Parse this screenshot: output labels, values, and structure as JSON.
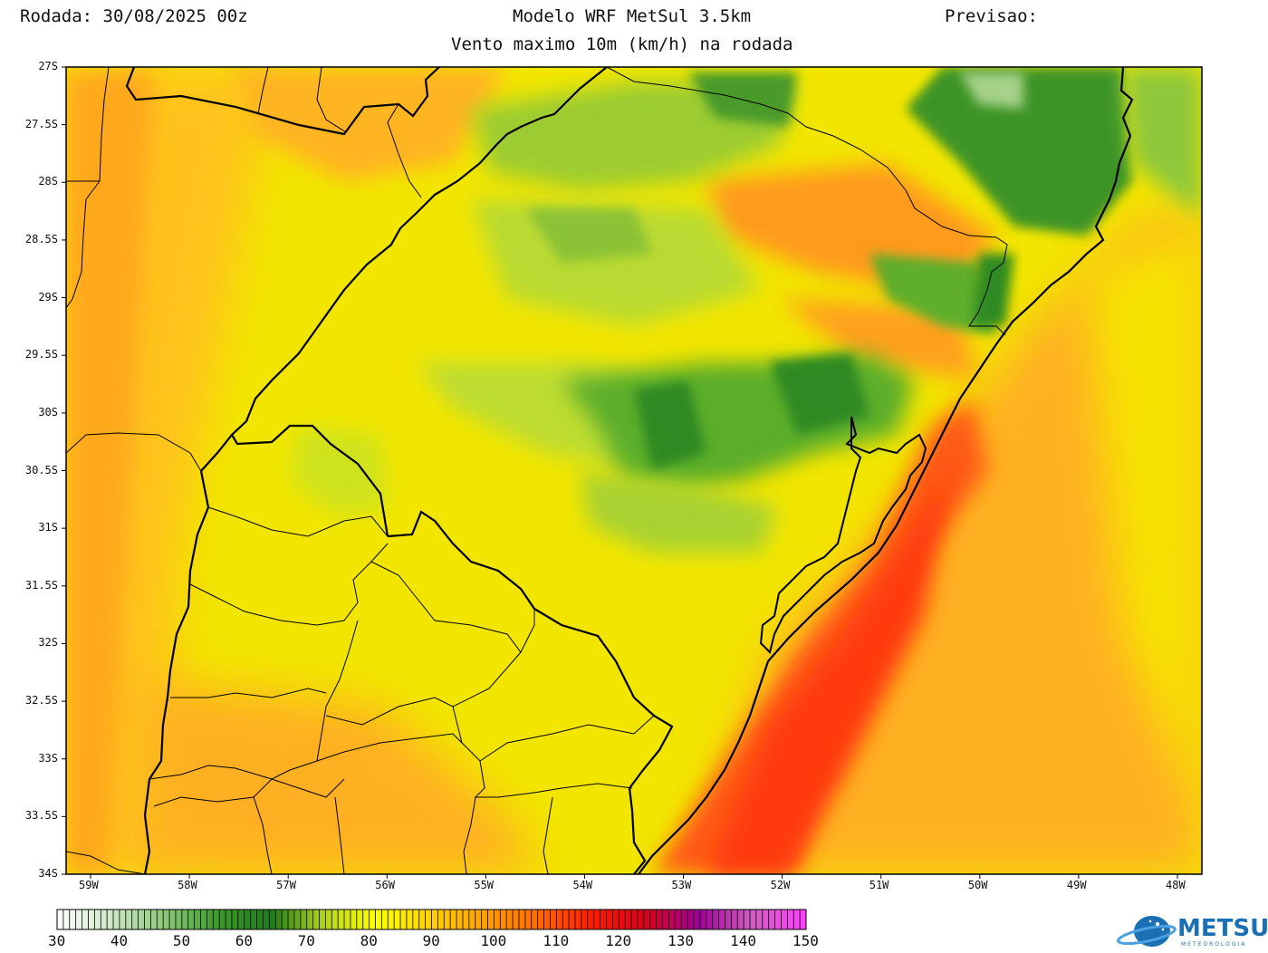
{
  "header": {
    "run": "Rodada: 30/08/2025 00z",
    "model": "Modelo WRF MetSul 3.5km",
    "forecast": "Previsao:",
    "subtitle": "Vento maximo 10m (km/h) na rodada"
  },
  "axes": {
    "lat_ticks": [
      "27S",
      "27.5S",
      "28S",
      "28.5S",
      "29S",
      "29.5S",
      "30S",
      "30.5S",
      "31S",
      "31.5S",
      "32S",
      "32.5S",
      "33S",
      "33.5S",
      "34S"
    ],
    "lon_ticks": [
      "59W",
      "58W",
      "57W",
      "56W",
      "55W",
      "54W",
      "53W",
      "52W",
      "51W",
      "50W",
      "49W",
      "48W"
    ]
  },
  "colorbar": {
    "labels": [
      "30",
      "40",
      "50",
      "60",
      "70",
      "80",
      "90",
      "100",
      "110",
      "120",
      "130",
      "140",
      "150"
    ],
    "colors": [
      "#ffffff",
      "#cfe9c8",
      "#8cc97a",
      "#3e9a2c",
      "#1f7a1c",
      "#b5d51d",
      "#ffff00",
      "#ffd000",
      "#ffa000",
      "#ff6a00",
      "#ff1a00",
      "#d8001c",
      "#a0009a",
      "#d060c0",
      "#ff40ff"
    ]
  },
  "map": {
    "colors": {
      "yellow": "#f4f000",
      "yellow_orange": "#ffd21a",
      "orange": "#ffae1f",
      "dark_orange": "#ff8a1a",
      "red_orange": "#ff4a10",
      "light_green": "#b7d936",
      "green": "#5fae2a",
      "dark_green": "#2a8a22",
      "pale_green": "#a8d08c"
    }
  },
  "logo": {
    "text": "METSUL",
    "sub": "METEOROLOGIA"
  }
}
